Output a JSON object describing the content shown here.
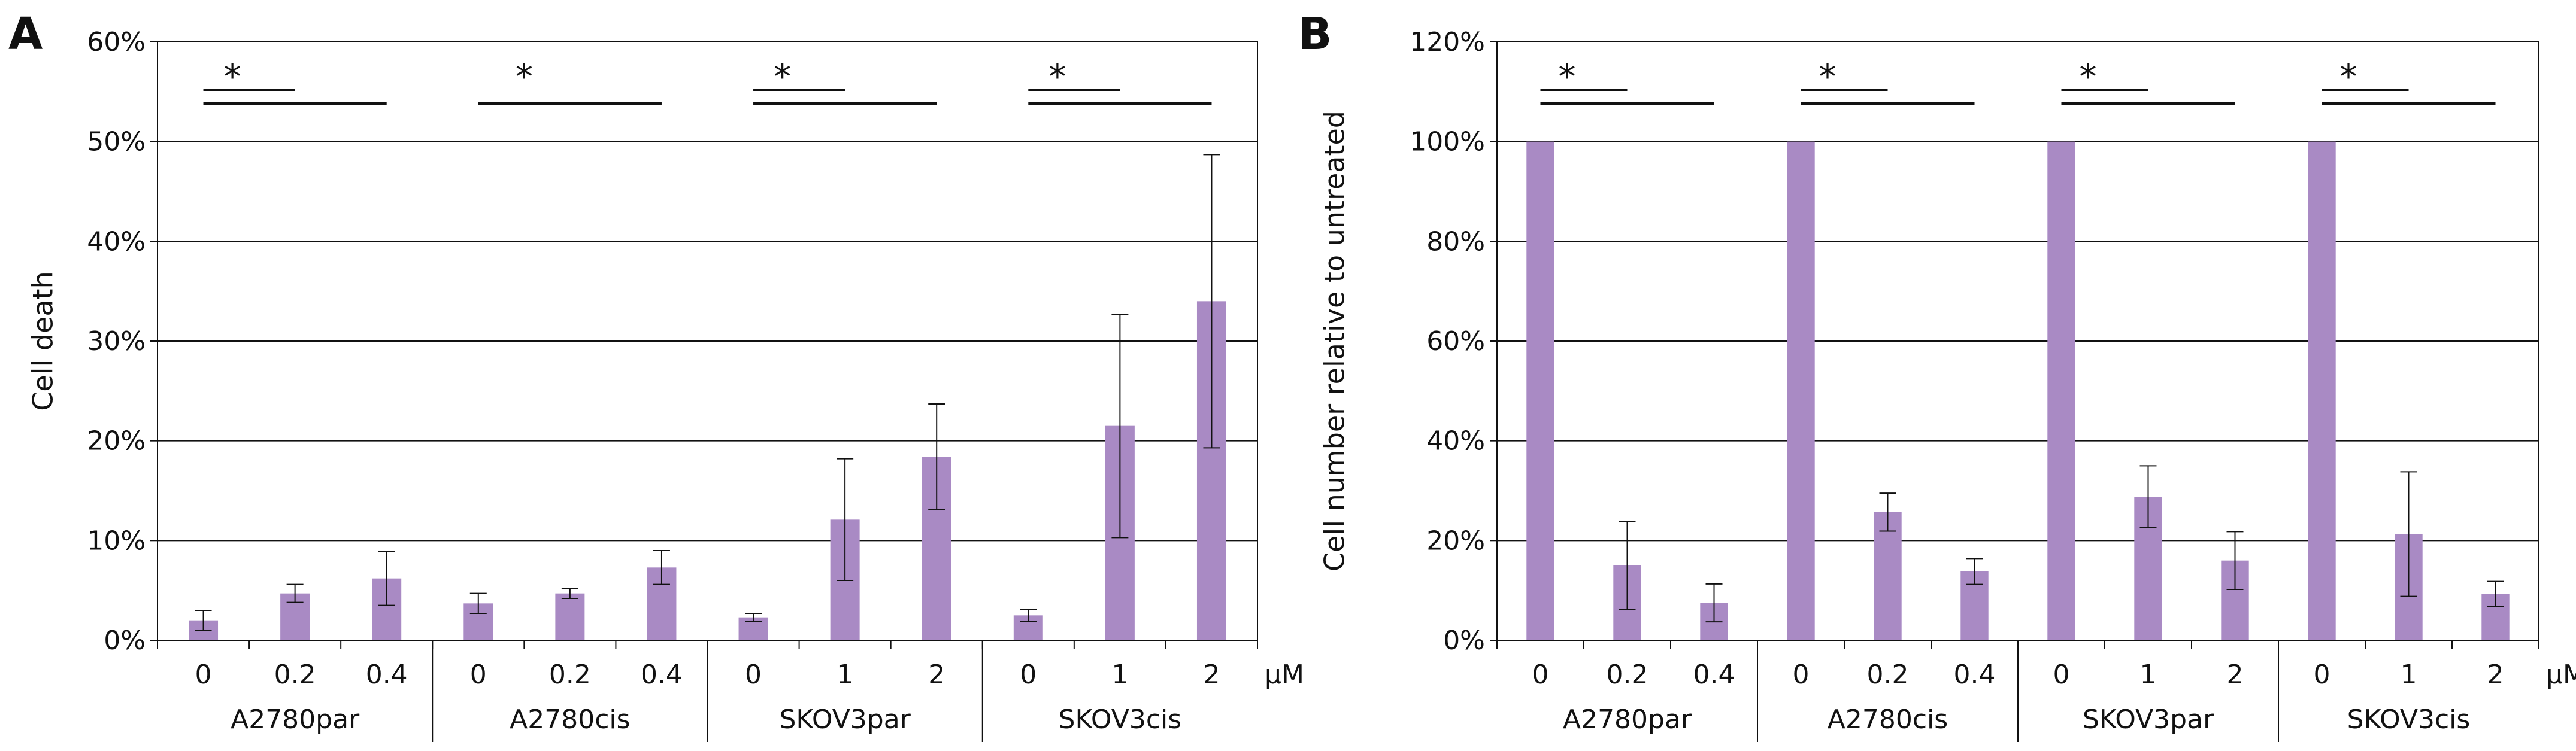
{
  "colors": {
    "bar": "#A98AC4",
    "axis": "#111111",
    "grid": "#111111"
  },
  "chart_data": [
    {
      "type": "bar",
      "panel": "A",
      "ylabel": "Cell death",
      "ylim": [
        0,
        60
      ],
      "yticks": [
        "0%",
        "10%",
        "20%",
        "30%",
        "40%",
        "50%",
        "60%"
      ],
      "unit": "µM",
      "groups": [
        {
          "name": "A2780par",
          "categories": [
            "0",
            "0.2",
            "0.4"
          ],
          "values": [
            2.0,
            4.7,
            6.2
          ],
          "errors": [
            1.0,
            0.9,
            2.7
          ],
          "sig": {
            "star": "*",
            "pairs": "both"
          }
        },
        {
          "name": "A2780cis",
          "categories": [
            "0",
            "0.2",
            "0.4"
          ],
          "values": [
            3.7,
            4.7,
            7.3
          ],
          "errors": [
            1.0,
            0.5,
            1.7
          ],
          "sig": {
            "star": "*",
            "pairs": "long"
          }
        },
        {
          "name": "SKOV3par",
          "categories": [
            "0",
            "1",
            "2"
          ],
          "values": [
            2.3,
            12.1,
            18.4
          ],
          "errors": [
            0.4,
            6.1,
            5.3
          ],
          "sig": {
            "star": "*",
            "pairs": "both"
          }
        },
        {
          "name": "SKOV3cis",
          "categories": [
            "0",
            "1",
            "2"
          ],
          "values": [
            2.5,
            21.5,
            34.0
          ],
          "errors": [
            0.6,
            11.2,
            14.7
          ],
          "sig": {
            "star": "*",
            "pairs": "both"
          }
        }
      ]
    },
    {
      "type": "bar",
      "panel": "B",
      "ylabel": "Cell number relative to untreated",
      "ylim": [
        0,
        120
      ],
      "yticks": [
        "0%",
        "20%",
        "40%",
        "60%",
        "80%",
        "100%",
        "120%"
      ],
      "unit": "µM",
      "groups": [
        {
          "name": "A2780par",
          "categories": [
            "0",
            "0.2",
            "0.4"
          ],
          "values": [
            100,
            15.0,
            7.5
          ],
          "errors": [
            0,
            8.8,
            3.8
          ],
          "sig": {
            "star": "*",
            "pairs": "both"
          }
        },
        {
          "name": "A2780cis",
          "categories": [
            "0",
            "0.2",
            "0.4"
          ],
          "values": [
            100,
            25.7,
            13.8
          ],
          "errors": [
            0,
            3.8,
            2.6
          ],
          "sig": {
            "star": "*",
            "pairs": "both"
          }
        },
        {
          "name": "SKOV3par",
          "categories": [
            "0",
            "1",
            "2"
          ],
          "values": [
            100,
            28.8,
            16.0
          ],
          "errors": [
            0,
            6.2,
            5.8
          ],
          "sig": {
            "star": "*",
            "pairs": "both"
          }
        },
        {
          "name": "SKOV3cis",
          "categories": [
            "0",
            "1",
            "2"
          ],
          "values": [
            100,
            21.3,
            9.3
          ],
          "errors": [
            0,
            12.5,
            2.5
          ],
          "sig": {
            "star": "*",
            "pairs": "both"
          }
        }
      ]
    }
  ]
}
